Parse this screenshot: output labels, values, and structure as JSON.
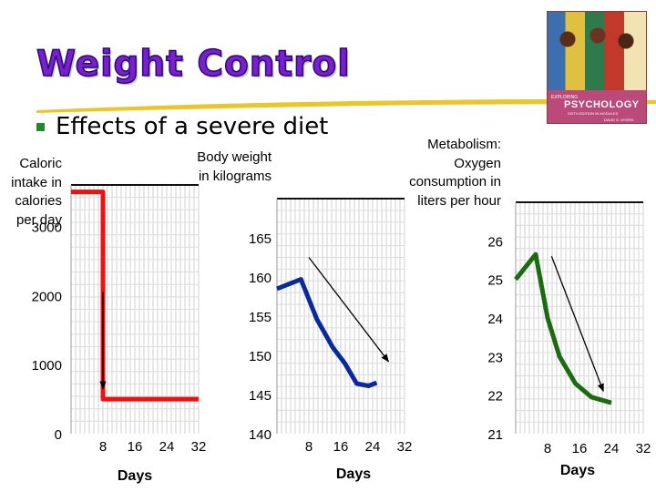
{
  "slide": {
    "title": "Weight Control",
    "bullet": "Effects of a severe diet"
  },
  "book_cover": {
    "series": "EXPLORING",
    "title": "PSYCHOLOGY",
    "subtitle": "SIXTH EDITION IN MODULES",
    "author": "DAVID G. MYERS"
  },
  "colors": {
    "title": "#7a1fd0",
    "underline": "#e9c62a",
    "bullet": "#1e8a2c",
    "caloric_series": "#ee1111",
    "weight_series": "#0b2a9a",
    "metabolism_series": "#1b6b12"
  },
  "chart_data": [
    {
      "type": "line",
      "ylabel": "Caloric intake in calories per day",
      "xlabel": "Days",
      "x_ticks": [
        8,
        16,
        24,
        32
      ],
      "y_ticks": [
        0,
        1000,
        2000,
        3000
      ],
      "xlim": [
        0,
        32
      ],
      "ylim": [
        0,
        3600
      ],
      "grid": true,
      "series": [
        {
          "points": [
            [
              0,
              3500
            ],
            [
              8,
              3500
            ],
            [
              8,
              500
            ],
            [
              32,
              500
            ]
          ]
        }
      ],
      "annotations": [
        {
          "type": "arrow",
          "from": [
            8,
            2050
          ],
          "to": [
            8,
            650
          ]
        }
      ]
    },
    {
      "type": "line",
      "ylabel": "Body weight in kilograms",
      "xlabel": "Days",
      "x_ticks": [
        8,
        16,
        24,
        32
      ],
      "y_ticks": [
        140,
        145,
        150,
        155,
        160,
        165
      ],
      "xlim": [
        0,
        32
      ],
      "ylim": [
        140,
        170
      ],
      "grid": true,
      "series": [
        {
          "points": [
            [
              0,
              158.5
            ],
            [
              6,
              159.7
            ],
            [
              10,
              154.6
            ],
            [
              14,
              151.0
            ],
            [
              17,
              149.0
            ],
            [
              20,
              146.4
            ],
            [
              22,
              146.2
            ],
            [
              23,
              146.1
            ],
            [
              25,
              146.5
            ]
          ]
        }
      ],
      "annotations": [
        {
          "type": "arrow",
          "from": [
            8,
            162.5
          ],
          "to": [
            28,
            149.2
          ]
        }
      ]
    },
    {
      "type": "line",
      "ylabel": "Metabolism: Oxygen consumption in liters per hour",
      "xlabel": "Days",
      "x_ticks": [
        8,
        16,
        24,
        32
      ],
      "y_ticks": [
        21,
        22,
        23,
        24,
        25,
        26
      ],
      "xlim": [
        0,
        32
      ],
      "ylim": [
        21,
        27
      ],
      "grid": true,
      "series": [
        {
          "points": [
            [
              0,
              25.0
            ],
            [
              5,
              25.65
            ],
            [
              8,
              24.0
            ],
            [
              11,
              23.0
            ],
            [
              15,
              22.3
            ],
            [
              19,
              21.95
            ],
            [
              24,
              21.8
            ]
          ]
        }
      ],
      "annotations": [
        {
          "type": "arrow",
          "from": [
            9,
            25.6
          ],
          "to": [
            22,
            22.1
          ]
        }
      ]
    }
  ]
}
